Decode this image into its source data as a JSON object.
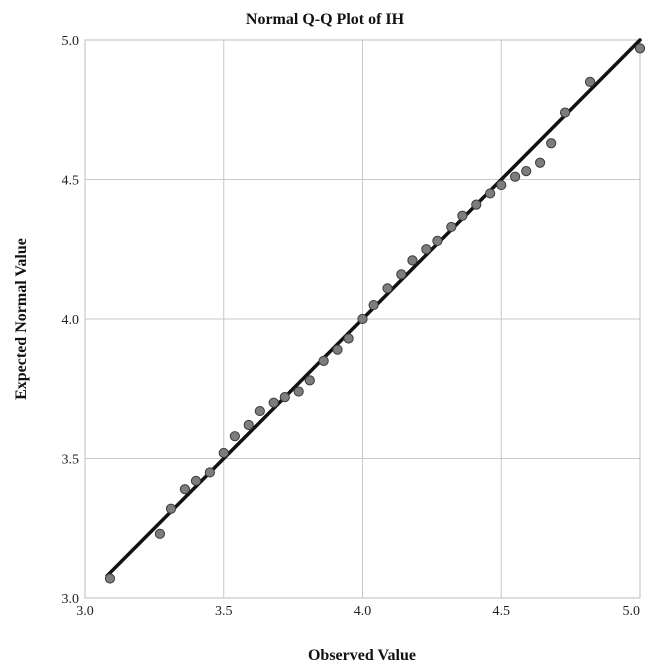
{
  "chart_data": {
    "type": "scatter",
    "title": "Normal Q-Q Plot of IH",
    "xlabel": "Observed Value",
    "ylabel": "Expected Normal Value",
    "xlim": [
      3.0,
      5.0
    ],
    "ylim": [
      3.0,
      5.0
    ],
    "x_ticks": [
      "3.0",
      "3.5",
      "4.0",
      "4.5",
      "5.0"
    ],
    "y_ticks": [
      "3.0",
      "3.5",
      "4.0",
      "4.5",
      "5.0"
    ],
    "grid": true,
    "reference_line": {
      "from": [
        3.08,
        3.08
      ],
      "to": [
        5.0,
        5.0
      ]
    },
    "points": [
      {
        "x": 3.09,
        "y": 3.07
      },
      {
        "x": 3.27,
        "y": 3.23
      },
      {
        "x": 3.31,
        "y": 3.32
      },
      {
        "x": 3.36,
        "y": 3.39
      },
      {
        "x": 3.4,
        "y": 3.42
      },
      {
        "x": 3.45,
        "y": 3.45
      },
      {
        "x": 3.5,
        "y": 3.52
      },
      {
        "x": 3.54,
        "y": 3.58
      },
      {
        "x": 3.59,
        "y": 3.62
      },
      {
        "x": 3.63,
        "y": 3.67
      },
      {
        "x": 3.68,
        "y": 3.7
      },
      {
        "x": 3.72,
        "y": 3.72
      },
      {
        "x": 3.77,
        "y": 3.74
      },
      {
        "x": 3.81,
        "y": 3.78
      },
      {
        "x": 3.86,
        "y": 3.85
      },
      {
        "x": 3.91,
        "y": 3.89
      },
      {
        "x": 3.95,
        "y": 3.93
      },
      {
        "x": 4.0,
        "y": 4.0
      },
      {
        "x": 4.04,
        "y": 4.05
      },
      {
        "x": 4.09,
        "y": 4.11
      },
      {
        "x": 4.14,
        "y": 4.16
      },
      {
        "x": 4.18,
        "y": 4.21
      },
      {
        "x": 4.23,
        "y": 4.25
      },
      {
        "x": 4.27,
        "y": 4.28
      },
      {
        "x": 4.32,
        "y": 4.33
      },
      {
        "x": 4.36,
        "y": 4.37
      },
      {
        "x": 4.41,
        "y": 4.41
      },
      {
        "x": 4.46,
        "y": 4.45
      },
      {
        "x": 4.5,
        "y": 4.48
      },
      {
        "x": 4.55,
        "y": 4.51
      },
      {
        "x": 4.59,
        "y": 4.53
      },
      {
        "x": 4.64,
        "y": 4.56
      },
      {
        "x": 4.68,
        "y": 4.63
      },
      {
        "x": 4.73,
        "y": 4.74
      },
      {
        "x": 4.82,
        "y": 4.85
      },
      {
        "x": 5.0,
        "y": 4.97
      }
    ]
  }
}
